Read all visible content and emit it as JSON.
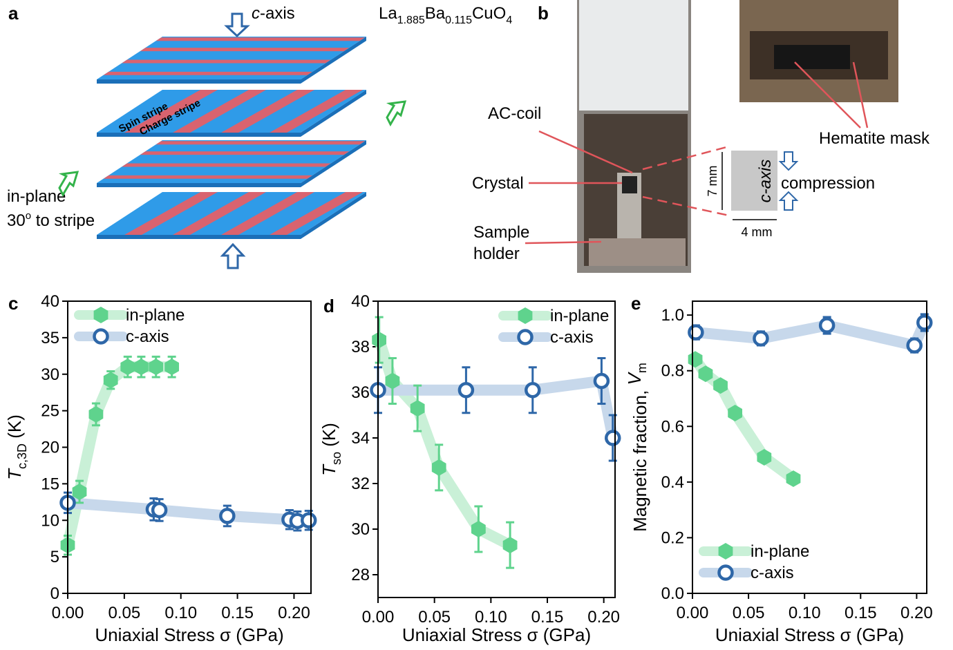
{
  "panel_a": {
    "label": "a",
    "axis_top": [
      "c",
      "-axis"
    ],
    "formula": [
      "La",
      "1.885",
      "Ba",
      "0.115",
      "CuO",
      "4"
    ],
    "spin_stripe": "Spin stripe",
    "charge_stripe": "Charge stripe",
    "inplane_lines": [
      "in-plane",
      [
        "30",
        "o",
        " to stripe"
      ]
    ]
  },
  "panel_b": {
    "label": "b",
    "ac_coil": "AC-coil",
    "crystal": "Crystal",
    "sample_holder": [
      "Sample",
      "holder"
    ],
    "hematite": "Hematite mask",
    "height": "7 mm",
    "width": "4 mm",
    "axis_box": "c-axis",
    "compression": "compression"
  },
  "chart_data": [
    {
      "type": "scatter",
      "label": "c",
      "xlabel": "Uniaxial Stress σ (GPa)",
      "ylabel": [
        "T",
        "c,3D",
        " (K)"
      ],
      "xlim": [
        0,
        0.215
      ],
      "xticks": [
        {
          "value": 0,
          "label": "0.00"
        },
        {
          "value": 0.05,
          "label": "0.05"
        },
        {
          "value": 0.1,
          "label": "0.10"
        },
        {
          "value": 0.15,
          "label": "0.15"
        },
        {
          "value": 0.2,
          "label": "0.20"
        }
      ],
      "ylim": [
        0,
        40
      ],
      "yticks": [
        0,
        5,
        10,
        15,
        20,
        25,
        30,
        35,
        40
      ],
      "legend": "upper left",
      "series": [
        {
          "name": "in-plane",
          "color": "#5fd38d",
          "marker": "hexagon",
          "x": [
            0,
            0.0104,
            0.025,
            0.038,
            0.053,
            0.065,
            0.078,
            0.092
          ],
          "values": [
            6.6,
            13.9,
            24.5,
            29.2,
            31.0,
            31.0,
            31.0,
            31.0
          ],
          "errors": [
            1.3,
            1.5,
            1.5,
            1.2,
            1.4,
            1.4,
            1.4,
            1.4
          ]
        },
        {
          "name": "c-axis",
          "color": "#2e67a8",
          "marker": "circle",
          "x": [
            0,
            0.076,
            0.081,
            0.141,
            0.196,
            0.203,
            0.213
          ],
          "values": [
            12.4,
            11.5,
            11.4,
            10.6,
            10.1,
            9.9,
            10.0
          ],
          "errors": [
            1.4,
            1.5,
            1.5,
            1.4,
            1.3,
            1.3,
            1.3
          ]
        }
      ]
    },
    {
      "type": "scatter",
      "label": "d",
      "xlabel": "Uniaxial Stress σ (GPa)",
      "ylabel": [
        "T",
        "so",
        " (K)"
      ],
      "xlim": [
        0,
        0.21
      ],
      "xticks": [
        {
          "value": 0,
          "label": "0.00"
        },
        {
          "value": 0.05,
          "label": "0.05"
        },
        {
          "value": 0.1,
          "label": "0.10"
        },
        {
          "value": 0.15,
          "label": "0.15"
        },
        {
          "value": 0.2,
          "label": "0.20"
        }
      ],
      "ylim": [
        27,
        40
      ],
      "yticks": [
        28,
        30,
        32,
        34,
        36,
        38,
        40
      ],
      "legend": "upper right",
      "series": [
        {
          "name": "in-plane",
          "color": "#5fd38d",
          "marker": "hexagon",
          "x": [
            0.001,
            0.0128,
            0.035,
            0.054,
            0.089,
            0.117
          ],
          "values": [
            38.3,
            36.5,
            35.3,
            32.7,
            30.0,
            29.3
          ],
          "errors": [
            1.0,
            1.0,
            1.0,
            1.0,
            1.0,
            1.0
          ]
        },
        {
          "name": "c-axis",
          "color": "#2e67a8",
          "marker": "circle",
          "x": [
            0,
            0.078,
            0.137,
            0.198,
            0.208
          ],
          "values": [
            36.1,
            36.1,
            36.1,
            36.5,
            34.0
          ],
          "errors": [
            1.0,
            1.0,
            1.0,
            1.0,
            1.0
          ]
        }
      ]
    },
    {
      "type": "scatter",
      "label": "e",
      "xlabel": "Uniaxial Stress σ (GPa)",
      "ylabel": [
        "Magnetic fraction, ",
        "V",
        "m"
      ],
      "xlim": [
        0,
        0.209
      ],
      "xticks": [
        {
          "value": 0,
          "label": "0.00"
        },
        {
          "value": 0.05,
          "label": "0.05"
        },
        {
          "value": 0.1,
          "label": "0.10"
        },
        {
          "value": 0.15,
          "label": "0.15"
        },
        {
          "value": 0.2,
          "label": "0.20"
        }
      ],
      "ylim": [
        0,
        1.05
      ],
      "yticks": [
        {
          "value": 0,
          "label": "0.0"
        },
        {
          "value": 0.2,
          "label": "0.2"
        },
        {
          "value": 0.4,
          "label": "0.4"
        },
        {
          "value": 0.6,
          "label": "0.6"
        },
        {
          "value": 0.8,
          "label": "0.8"
        },
        {
          "value": 1,
          "label": "1.0"
        }
      ],
      "legend": "lower left",
      "series": [
        {
          "name": "in-plane",
          "color": "#5fd38d",
          "marker": "hexagon",
          "x": [
            0.0025,
            0.0117,
            0.025,
            0.038,
            0.064,
            0.09
          ],
          "values": [
            0.841,
            0.789,
            0.747,
            0.648,
            0.489,
            0.412
          ]
        },
        {
          "name": "c-axis",
          "color": "#2e67a8",
          "marker": "circle",
          "x": [
            0.003,
            0.061,
            0.12,
            0.198,
            0.207
          ],
          "values": [
            0.938,
            0.916,
            0.963,
            0.891,
            0.973
          ],
          "errors": [
            0.025,
            0.025,
            0.03,
            0.025,
            0.03
          ]
        }
      ]
    }
  ]
}
